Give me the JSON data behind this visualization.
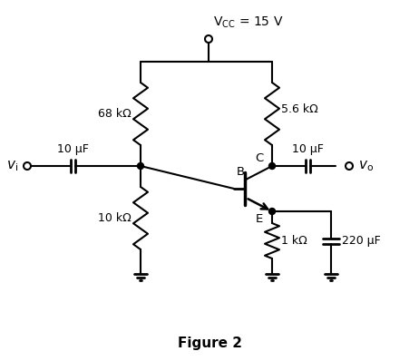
{
  "title": "Figure 2",
  "vcc_label": "V",
  "vcc_sub": "CC",
  "vcc_val": " = 15 V",
  "r1_label": "68 kΩ",
  "r2_label": "10 kΩ",
  "rc_label": "5.6 kΩ",
  "re_label": "1 kΩ",
  "c1_label": "10 μF",
  "c2_label": "10 μF",
  "ce_label": "220 μF",
  "vi_label": "v",
  "vi_sub": "i",
  "vo_label": "v",
  "vo_sub": "o",
  "B_label": "B",
  "C_label": "C",
  "E_label": "E",
  "line_color": "#000000",
  "bg_color": "#ffffff",
  "lw": 1.5
}
